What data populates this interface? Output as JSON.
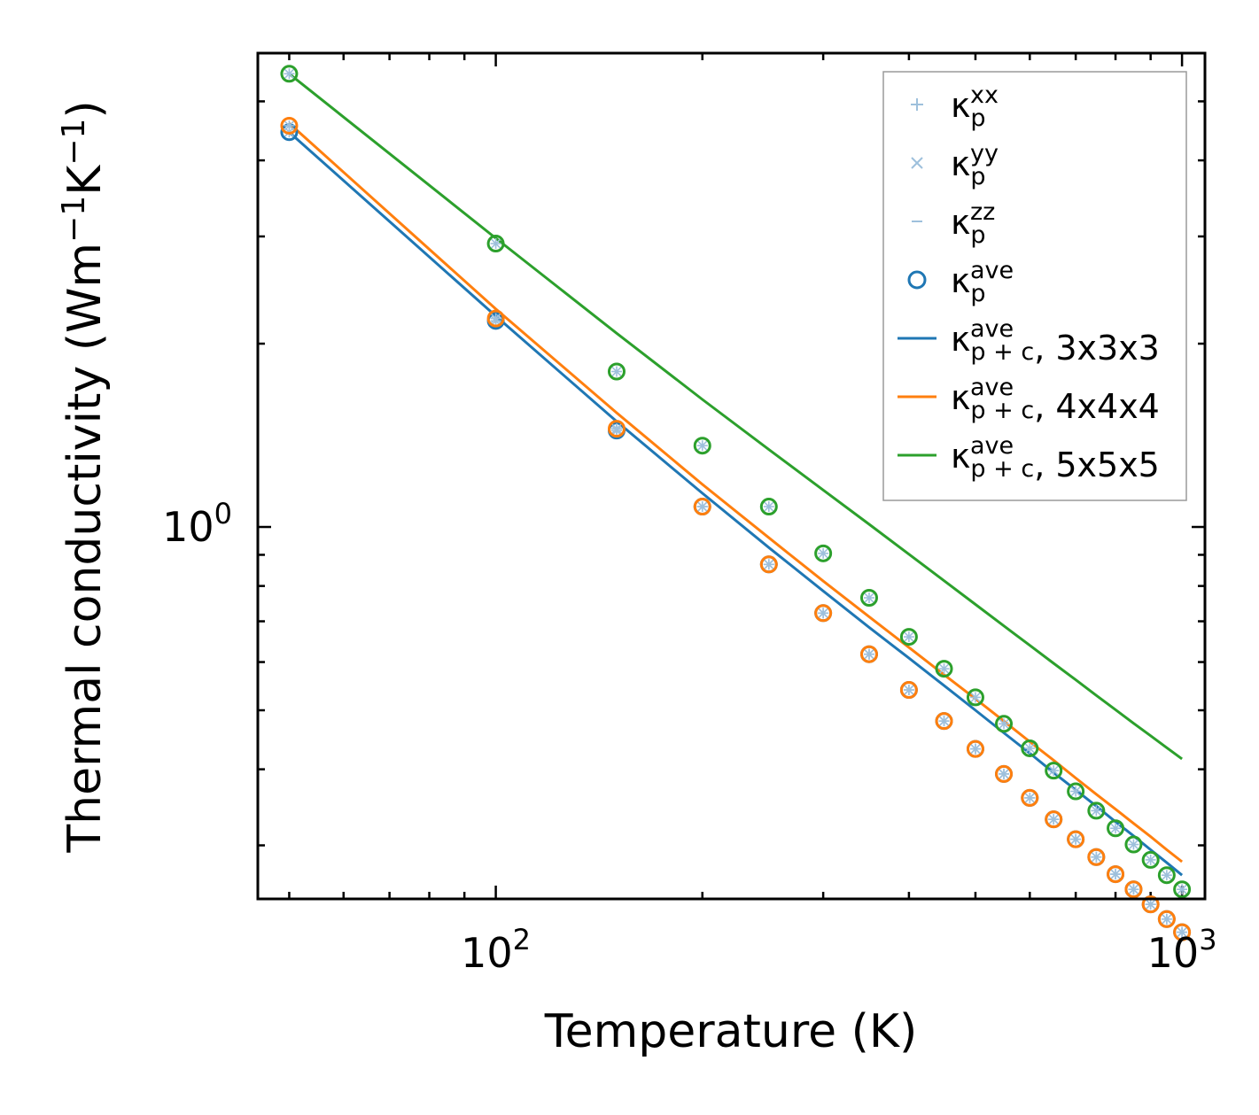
{
  "chart_data": {
    "type": "scatter",
    "xscale": "log",
    "yscale": "log",
    "xlabel": "Temperature (K)",
    "ylabel": "Thermal conductivity (Wm",
    "ylabel_unit_parts": [
      "Thermal conductivity (Wm",
      "−1",
      "K",
      "−1",
      ")"
    ],
    "xlim": [
      45,
      1080
    ],
    "ylim": [
      0.245,
      6.0
    ],
    "x_major_ticks": [
      {
        "value": 100,
        "base": "10",
        "exp": "2"
      },
      {
        "value": 1000,
        "base": "10",
        "exp": "3"
      }
    ],
    "y_major_ticks": [
      {
        "value": 1,
        "base": "10",
        "exp": "0"
      }
    ],
    "legend": {
      "position": "upper right",
      "entries": [
        {
          "marker": "plus",
          "symbol": "κ",
          "sub": "p",
          "sup": "xx",
          "tail": "",
          "color": "#9ec0dc"
        },
        {
          "marker": "x",
          "symbol": "κ",
          "sub": "p",
          "sup": "yy",
          "tail": "",
          "color": "#9ec0dc"
        },
        {
          "marker": "dash",
          "symbol": "κ",
          "sub": "p",
          "sup": "zz",
          "tail": "",
          "color": "#9ec0dc"
        },
        {
          "marker": "circle",
          "symbol": "κ",
          "sub": "p",
          "sup": "ave",
          "tail": "",
          "color": "#1f77b4"
        },
        {
          "marker": "line",
          "symbol": "κ",
          "sub": "p + c",
          "sup": "ave",
          "tail": ", 3x3x3",
          "color": "#1f77b4"
        },
        {
          "marker": "line",
          "symbol": "κ",
          "sub": "p + c",
          "sup": "ave",
          "tail": ", 4x4x4",
          "color": "#ff7f0e"
        },
        {
          "marker": "line",
          "symbol": "κ",
          "sub": "p + c",
          "sup": "ave",
          "tail": ", 5x5x5",
          "color": "#2ca02c"
        }
      ]
    },
    "temperatures": [
      50,
      100,
      150,
      200,
      250,
      300,
      350,
      400,
      450,
      500,
      550,
      600,
      650,
      700,
      750,
      800,
      850,
      900,
      950,
      1000
    ],
    "series": [
      {
        "name": "3x3x3",
        "color": "#1f77b4",
        "kappa_p_ave": [
          4.45,
          2.18,
          1.44,
          1.08,
          0.868,
          0.722,
          0.618,
          0.54,
          0.48,
          0.432,
          0.393,
          0.359,
          0.331,
          0.307,
          0.287,
          0.269,
          0.254,
          0.24,
          0.227,
          0.216
        ],
        "kappa_pc_ave": [
          4.45,
          2.22,
          1.49,
          1.136,
          0.925,
          0.785,
          0.684,
          0.609,
          0.549,
          0.5,
          0.459,
          0.425,
          0.395,
          0.37,
          0.348,
          0.328,
          0.311,
          0.295,
          0.281,
          0.268
        ]
      },
      {
        "name": "4x4x4",
        "color": "#ff7f0e",
        "kappa_p_ave": [
          4.56,
          2.2,
          1.45,
          1.08,
          0.868,
          0.722,
          0.618,
          0.54,
          0.48,
          0.432,
          0.393,
          0.359,
          0.331,
          0.307,
          0.287,
          0.269,
          0.254,
          0.24,
          0.227,
          0.216
        ],
        "kappa_pc_ave": [
          4.6,
          2.28,
          1.54,
          1.175,
          0.96,
          0.815,
          0.712,
          0.634,
          0.572,
          0.522,
          0.48,
          0.444,
          0.414,
          0.387,
          0.364,
          0.344,
          0.326,
          0.31,
          0.295,
          0.282
        ]
      },
      {
        "name": "5x5x5",
        "color": "#2ca02c",
        "kappa_p_ave": [
          5.55,
          2.92,
          1.8,
          1.36,
          1.08,
          0.905,
          0.765,
          0.66,
          0.585,
          0.525,
          0.475,
          0.433,
          0.398,
          0.368,
          0.342,
          0.32,
          0.301,
          0.284,
          0.268,
          0.254
        ],
        "kappa_pc_ave": [
          5.55,
          2.98,
          2.08,
          1.62,
          1.34,
          1.15,
          1.01,
          0.902,
          0.816,
          0.746,
          0.688,
          0.639,
          0.597,
          0.561,
          0.529,
          0.501,
          0.476,
          0.454,
          0.434,
          0.416
        ]
      }
    ]
  }
}
